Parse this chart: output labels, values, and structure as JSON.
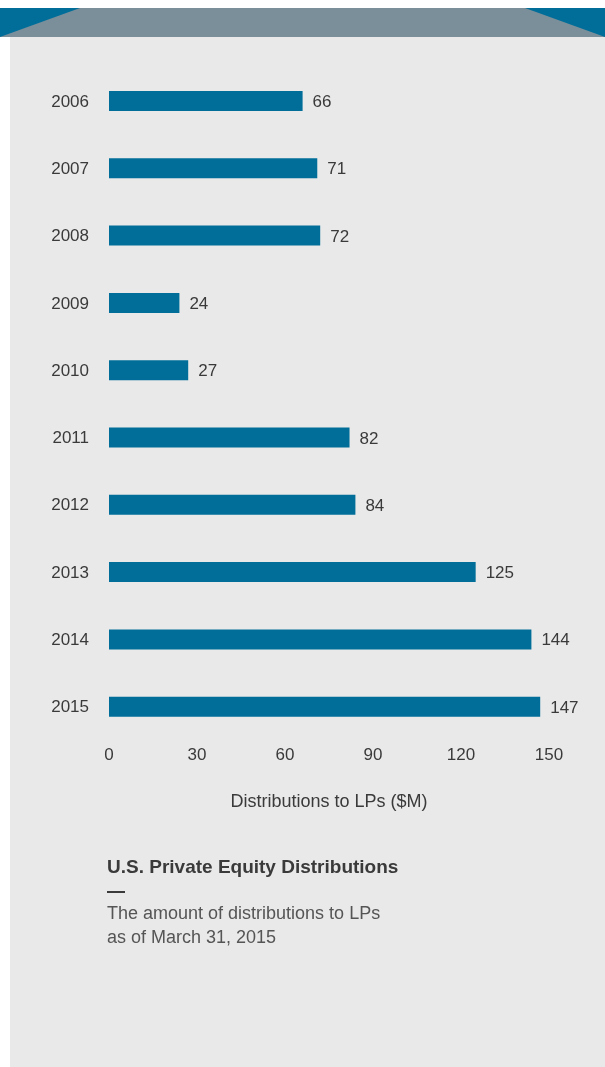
{
  "chart_data": {
    "type": "bar",
    "orientation": "horizontal",
    "title": "U.S. Private Equity Distributions",
    "subtitle": "The amount of distributions to LPs as of March 31, 2015",
    "xlabel": "Distributions to LPs ($M)",
    "categories": [
      "2006",
      "2007",
      "2008",
      "2009",
      "2010",
      "2011",
      "2012",
      "2013",
      "2014",
      "2015"
    ],
    "values": [
      66,
      71,
      72,
      24,
      27,
      82,
      84,
      125,
      144,
      147
    ],
    "color": "#006e99",
    "xlim": [
      0,
      150
    ],
    "xticks": [
      0,
      30,
      60,
      90,
      120,
      150
    ],
    "data_labels": true,
    "grid": false,
    "legend": false
  }
}
